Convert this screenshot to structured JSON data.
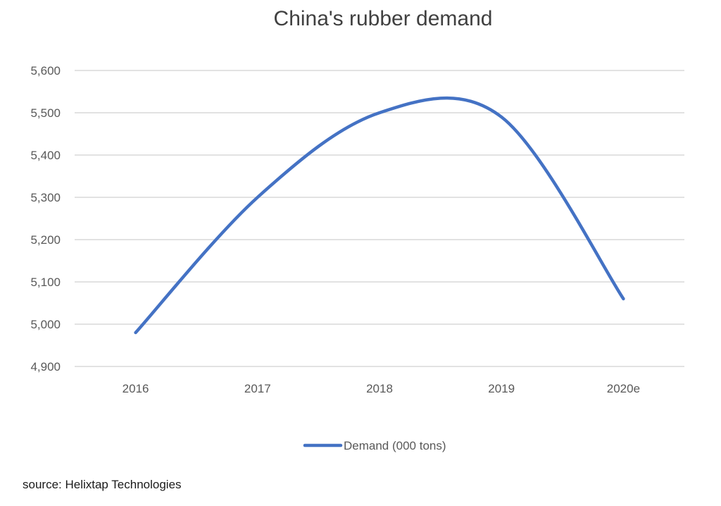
{
  "chart_data": {
    "type": "line",
    "title": "China's rubber demand",
    "categories": [
      "2016",
      "2017",
      "2018",
      "2019",
      "2020e"
    ],
    "series": [
      {
        "name": "Demand (000 tons)",
        "values": [
          4980,
          5300,
          5500,
          5490,
          5060
        ],
        "color": "#4472c4"
      }
    ],
    "ylim": [
      4900,
      5600
    ],
    "yticks": [
      "4,900",
      "5,000",
      "5,100",
      "5,200",
      "5,300",
      "5,400",
      "5,500",
      "5,600"
    ],
    "xlabel": "",
    "ylabel": "",
    "grid": true,
    "legend": "bottom",
    "smooth": true
  },
  "source": "source: Helixtap Technologies"
}
